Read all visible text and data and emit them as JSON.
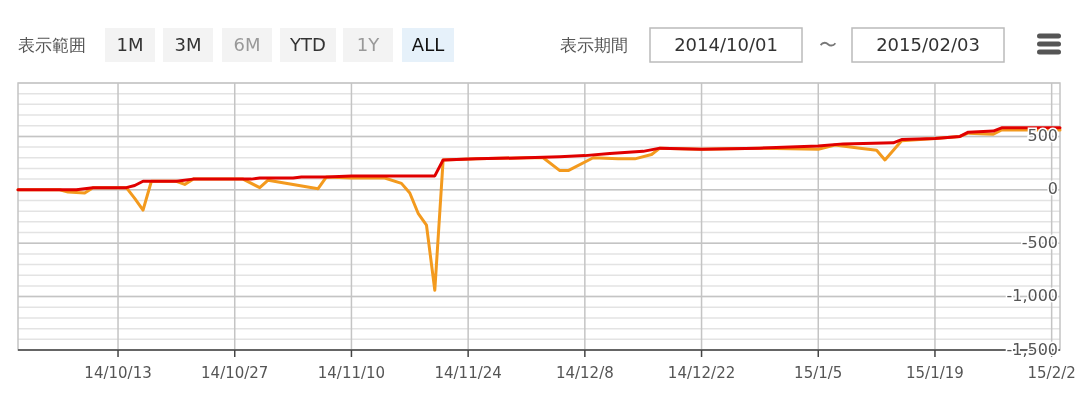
{
  "chart_data": {
    "type": "line",
    "xlim": [
      "2014-10-01",
      "2015-02-03"
    ],
    "ylim": [
      -1500,
      1000
    ],
    "xticks": [
      {
        "value": "2014-10-13",
        "label": "14/10/13"
      },
      {
        "value": "2014-10-27",
        "label": "14/10/27"
      },
      {
        "value": "2014-11-10",
        "label": "14/11/10"
      },
      {
        "value": "2014-11-24",
        "label": "14/11/24"
      },
      {
        "value": "2014-12-08",
        "label": "14/12/8"
      },
      {
        "value": "2014-12-22",
        "label": "14/12/22"
      },
      {
        "value": "2015-01-05",
        "label": "15/1/5"
      },
      {
        "value": "2015-01-19",
        "label": "15/1/19"
      },
      {
        "value": "2015-02-02",
        "label": "15/2/2"
      }
    ],
    "yticks": [
      {
        "value": -1500,
        "label": "-1,500"
      },
      {
        "value": -1000,
        "label": "-1,000"
      },
      -500,
      0,
      500
    ],
    "grid": true,
    "annotations": [
      "表示範囲",
      "1M",
      "3M",
      "6M",
      "YTD",
      "1Y",
      "ALL",
      "表示期間",
      "2014/10/01",
      "〜",
      "2015/02/03"
    ],
    "series": [
      {
        "color": "#f39a1e",
        "x": [
          "2014-10-01",
          "2014-10-06",
          "2014-10-07",
          "2014-10-09",
          "2014-10-10",
          "2014-10-14",
          "2014-10-15",
          "2014-10-16",
          "2014-10-17",
          "2014-10-20",
          "2014-10-21",
          "2014-10-22",
          "2014-10-28",
          "2014-10-30",
          "2014-10-31",
          "2014-11-06",
          "2014-11-07",
          "2014-11-10",
          "2014-11-14",
          "2014-11-16",
          "2014-11-17",
          "2014-11-18",
          "2014-11-19",
          "2014-11-20",
          "2014-11-21",
          "2014-11-25",
          "2014-12-01",
          "2014-12-03",
          "2014-12-05",
          "2014-12-06",
          "2014-12-09",
          "2014-12-12",
          "2014-12-14",
          "2014-12-16",
          "2014-12-17",
          "2014-12-22",
          "2014-12-29",
          "2015-01-05",
          "2015-01-07",
          "2015-01-10",
          "2015-01-12",
          "2015-01-13",
          "2015-01-15",
          "2015-01-19",
          "2015-01-22",
          "2015-01-23",
          "2015-01-26",
          "2015-01-27",
          "2015-02-03"
        ],
        "values": [
          0,
          0,
          -20,
          -30,
          20,
          20,
          -80,
          -190,
          80,
          80,
          50,
          100,
          100,
          20,
          90,
          10,
          120,
          110,
          110,
          60,
          -30,
          -220,
          -330,
          -940,
          280,
          290,
          300,
          300,
          180,
          180,
          300,
          290,
          290,
          330,
          390,
          380,
          390,
          380,
          420,
          390,
          370,
          280,
          460,
          480,
          500,
          530,
          520,
          560,
          560
        ]
      },
      {
        "color": "#e00000",
        "x": [
          "2014-10-01",
          "2014-10-08",
          "2014-10-10",
          "2014-10-14",
          "2014-10-15",
          "2014-10-16",
          "2014-10-20",
          "2014-10-22",
          "2014-10-29",
          "2014-10-30",
          "2014-11-03",
          "2014-11-04",
          "2014-11-07",
          "2014-11-10",
          "2014-11-20",
          "2014-11-21",
          "2014-11-25",
          "2014-12-01",
          "2014-12-05",
          "2014-12-08",
          "2014-12-11",
          "2014-12-15",
          "2014-12-17",
          "2014-12-22",
          "2014-12-29",
          "2015-01-05",
          "2015-01-08",
          "2015-01-14",
          "2015-01-15",
          "2015-01-19",
          "2015-01-22",
          "2015-01-23",
          "2015-01-26",
          "2015-01-27",
          "2015-02-03"
        ],
        "values": [
          0,
          0,
          20,
          20,
          40,
          80,
          80,
          100,
          100,
          110,
          110,
          120,
          120,
          130,
          130,
          280,
          290,
          300,
          310,
          320,
          340,
          360,
          390,
          380,
          390,
          410,
          430,
          440,
          470,
          480,
          500,
          540,
          550,
          580,
          580
        ]
      }
    ]
  }
}
